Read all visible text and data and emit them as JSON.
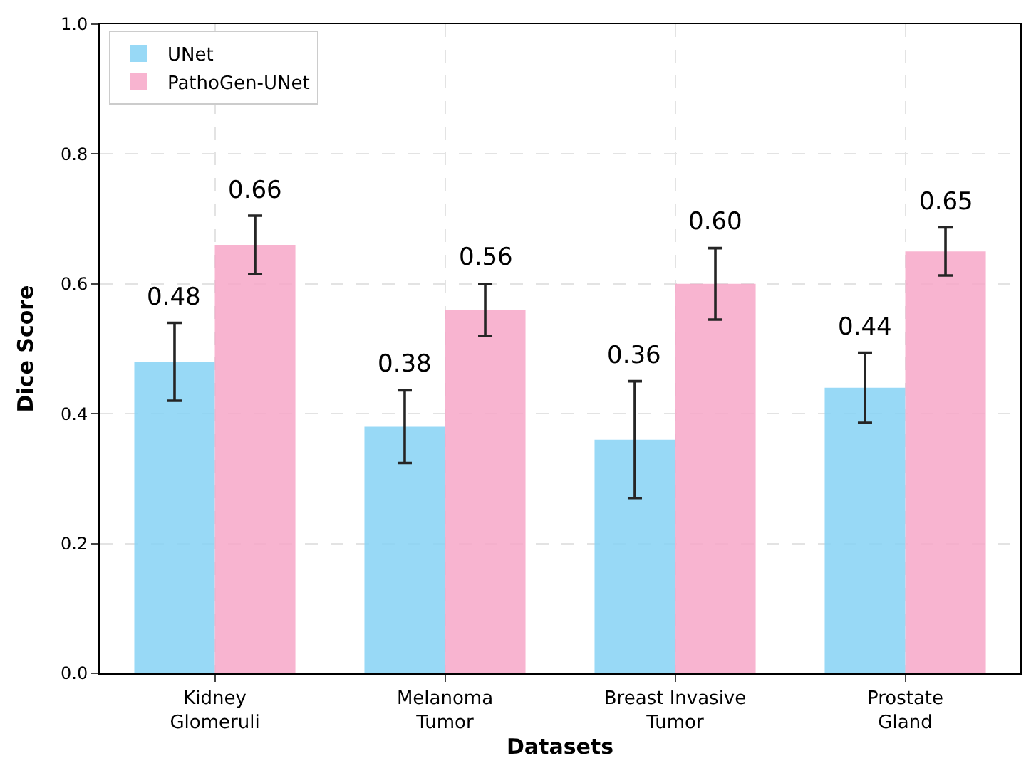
{
  "chart_data": {
    "type": "bar",
    "xlabel": "Datasets",
    "ylabel": "Dice Score",
    "categories": [
      "Kidney\nGlomeruli",
      "Melanoma\nTumor",
      "Breast Invasive\nTumor",
      "Prostate\nGland"
    ],
    "series": [
      {
        "name": "UNet",
        "color": "#87d3f5",
        "values": [
          0.48,
          0.38,
          0.36,
          0.44
        ],
        "value_labels": [
          "0.48",
          "0.38",
          "0.36",
          "0.44"
        ],
        "errors": [
          0.06,
          0.056,
          0.09,
          0.054
        ]
      },
      {
        "name": "PathoGen-UNet",
        "color": "#f7a8c8",
        "values": [
          0.66,
          0.56,
          0.6,
          0.65
        ],
        "value_labels": [
          "0.66",
          "0.56",
          "0.60",
          "0.65"
        ],
        "errors": [
          0.045,
          0.04,
          0.055,
          0.037
        ]
      }
    ],
    "ylim": [
      0,
      1
    ],
    "yticks": [
      {
        "value": 0,
        "label": "0.0"
      },
      {
        "value": 0.2,
        "label": "0.2"
      },
      {
        "value": 0.4,
        "label": "0.4"
      },
      {
        "value": 0.6,
        "label": "0.6"
      },
      {
        "value": 0.8,
        "label": "0.8"
      },
      {
        "value": 1,
        "label": "1.0"
      }
    ],
    "grid": true,
    "legend": "top left"
  }
}
